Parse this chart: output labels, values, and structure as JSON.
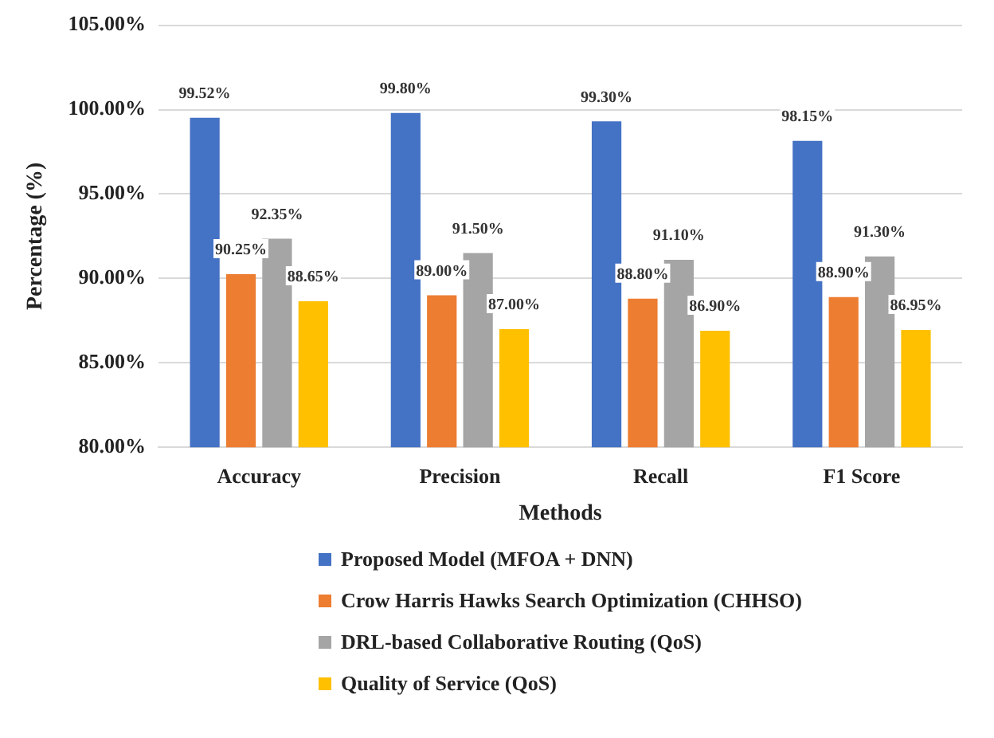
{
  "chart_data": {
    "type": "bar",
    "categories": [
      "Accuracy",
      "Precision",
      "Recall",
      "F1 Score"
    ],
    "xlabel": "Methods",
    "ylabel": "Percentage (%)",
    "series": [
      {
        "name": "Proposed Model (MFOA + DNN)",
        "color": "#4472c4",
        "values": [
          99.52,
          99.8,
          99.3,
          98.15
        ],
        "value_labels": [
          "99.52%",
          "99.80%",
          "99.30%",
          "98.15%"
        ]
      },
      {
        "name": "Crow Harris Hawks Search Optimization (CHHSO)",
        "color": "#ed7d31",
        "values": [
          90.25,
          89.0,
          88.8,
          88.9
        ],
        "value_labels": [
          "90.25%",
          "89.00%",
          "88.80%",
          "88.90%"
        ]
      },
      {
        "name": "DRL-based Collaborative Routing (QoS)",
        "color": "#a5a5a5",
        "values": [
          92.35,
          91.5,
          91.1,
          91.3
        ],
        "value_labels": [
          "92.35%",
          "91.50%",
          "91.10%",
          "91.30%"
        ]
      },
      {
        "name": "Quality of Service (QoS)",
        "color": "#ffc000",
        "values": [
          88.65,
          87.0,
          86.9,
          86.95
        ],
        "value_labels": [
          "88.65%",
          "87.00%",
          "86.90%",
          "86.95%"
        ]
      }
    ],
    "ylim": [
      80,
      105
    ],
    "yticks": [
      {
        "value": 80,
        "label": "80.00%"
      },
      {
        "value": 85,
        "label": "85.00%"
      },
      {
        "value": 90,
        "label": "90.00%"
      },
      {
        "value": 95,
        "label": "95.00%"
      },
      {
        "value": 100,
        "label": "100.00%"
      },
      {
        "value": 105,
        "label": "105.00%"
      }
    ],
    "grid": "y",
    "legend": "bottom"
  }
}
